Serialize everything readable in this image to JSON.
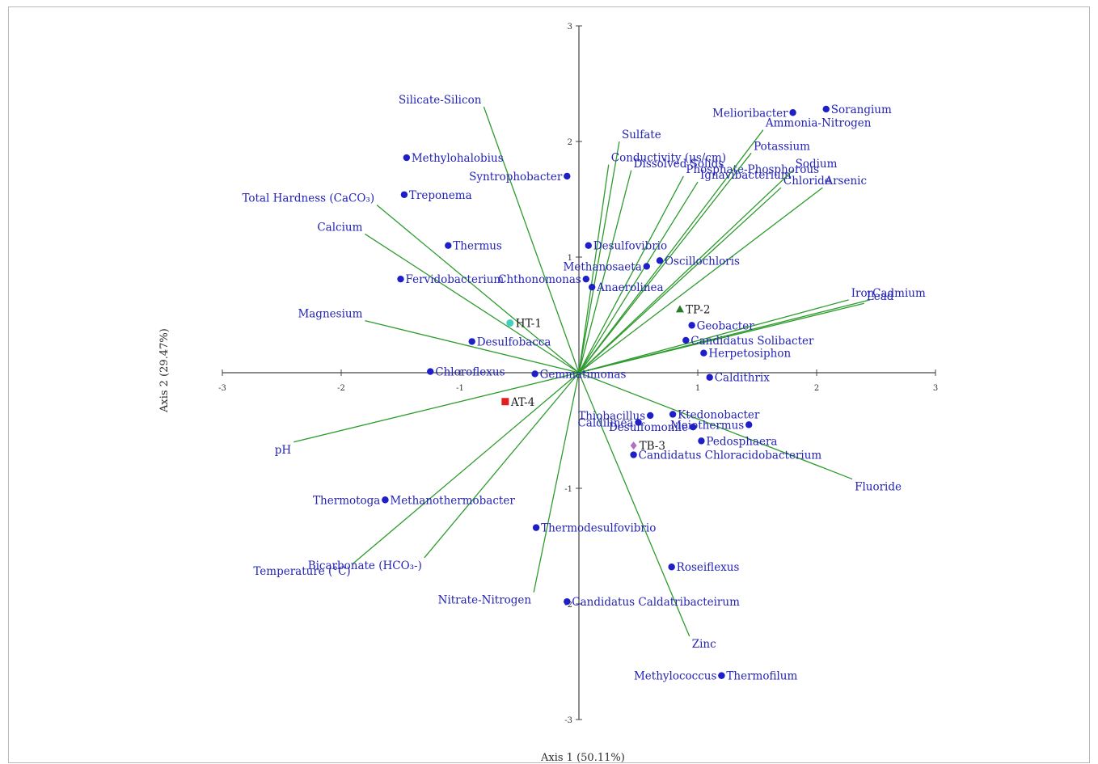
{
  "chart_data": {
    "type": "scatter",
    "subtype": "biplot",
    "xlabel": "Axis 1 (50.11%)",
    "ylabel": "Axis 2 (29.47%)",
    "xlim": [
      -3,
      3
    ],
    "ylim": [
      -3,
      3
    ],
    "xticks": [
      "-3",
      "-2",
      "-1",
      "1",
      "2",
      "3"
    ],
    "yticks": [
      "3",
      "2",
      "1",
      "-1",
      "-2",
      "-3"
    ],
    "grid": false,
    "colors": {
      "vector": "#2e9b2e",
      "taxon": "#1f1fc8",
      "label": "#2323b4",
      "axis": "#444444"
    },
    "vectors": [
      {
        "name": "Silicate-Silicon",
        "x": -0.8,
        "y": 2.3
      },
      {
        "name": "Sulfate",
        "x": 0.34,
        "y": 2.0
      },
      {
        "name": "Conductivity (μs/cm)",
        "x": 0.25,
        "y": 1.8
      },
      {
        "name": "Dissolved Solids",
        "x": 0.44,
        "y": 1.75
      },
      {
        "name": "Phosphate-Phosphorous",
        "x": 0.88,
        "y": 1.7
      },
      {
        "name": "Ammonia-Nitrogen",
        "x": 1.55,
        "y": 2.1
      },
      {
        "name": "Potassium",
        "x": 1.45,
        "y": 1.9
      },
      {
        "name": "Ignavibacterium",
        "x": 1.0,
        "y": 1.65
      },
      {
        "name": "Chloride",
        "x": 1.7,
        "y": 1.6
      },
      {
        "name": "Sodium",
        "x": 1.8,
        "y": 1.75
      },
      {
        "name": "Arsenic",
        "x": 2.05,
        "y": 1.6
      },
      {
        "name": "Total Hardness (CaCO₃)",
        "x": -1.7,
        "y": 1.45
      },
      {
        "name": "Calcium",
        "x": -1.8,
        "y": 1.2
      },
      {
        "name": "Magnesium",
        "x": -1.8,
        "y": 0.45
      },
      {
        "name": "Iron",
        "x": 2.27,
        "y": 0.63
      },
      {
        "name": "Cadmium",
        "x": 2.45,
        "y": 0.63
      },
      {
        "name": "Lead",
        "x": 2.4,
        "y": 0.6
      },
      {
        "name": "pH",
        "x": -2.4,
        "y": -0.6
      },
      {
        "name": "Fluoride",
        "x": 2.3,
        "y": -0.92
      },
      {
        "name": "Temperature (°C)",
        "x": -1.9,
        "y": -1.65
      },
      {
        "name": "Bicarbonate (HCO₃-)",
        "x": -1.3,
        "y": -1.6
      },
      {
        "name": "Nitrate-Nitrogen",
        "x": -0.38,
        "y": -1.9
      },
      {
        "name": "Zinc",
        "x": 0.93,
        "y": -2.28
      }
    ],
    "taxa": [
      {
        "name": "Sorangium",
        "x": 2.08,
        "y": 2.28,
        "label_side": "right"
      },
      {
        "name": "Melioribacter",
        "x": 1.8,
        "y": 2.25,
        "label_side": "left"
      },
      {
        "name": "Methylohalobius",
        "x": -1.45,
        "y": 1.86,
        "label_side": "right"
      },
      {
        "name": "Treponema",
        "x": -1.47,
        "y": 1.54,
        "label_side": "right"
      },
      {
        "name": "Syntrophobacter",
        "x": -0.1,
        "y": 1.7,
        "label_side": "left"
      },
      {
        "name": "Thermus",
        "x": -1.1,
        "y": 1.1,
        "label_side": "right"
      },
      {
        "name": "Desulfovibrio",
        "x": 0.08,
        "y": 1.1,
        "label_side": "right"
      },
      {
        "name": "Methanosaeta",
        "x": 0.57,
        "y": 0.92,
        "label_side": "left"
      },
      {
        "name": "Oscillochloris",
        "x": 0.68,
        "y": 0.97,
        "label_side": "right"
      },
      {
        "name": "Chthonomonas",
        "x": 0.06,
        "y": 0.81,
        "label_side": "left"
      },
      {
        "name": "Anaerolinea",
        "x": 0.11,
        "y": 0.74,
        "label_side": "right"
      },
      {
        "name": "Fervidobacterium",
        "x": -1.5,
        "y": 0.81,
        "label_side": "right"
      },
      {
        "name": "Geobacter",
        "x": 0.95,
        "y": 0.41,
        "label_side": "right"
      },
      {
        "name": "Candidatus Solibacter",
        "x": 0.9,
        "y": 0.28,
        "label_side": "right"
      },
      {
        "name": "Herpetosiphon",
        "x": 1.05,
        "y": 0.17,
        "label_side": "right"
      },
      {
        "name": "Desulfobacca",
        "x": -0.9,
        "y": 0.27,
        "label_side": "right"
      },
      {
        "name": "Chloroflexus",
        "x": -1.25,
        "y": 0.01,
        "label_side": "right"
      },
      {
        "name": "Gemmatimonas",
        "x": -0.37,
        "y": -0.01,
        "label_side": "right"
      },
      {
        "name": "Caldithrix",
        "x": 1.1,
        "y": -0.04,
        "label_side": "right"
      },
      {
        "name": "Ktedonobacter",
        "x": 0.79,
        "y": -0.36,
        "label_side": "right"
      },
      {
        "name": "Thiobacillus",
        "x": 0.6,
        "y": -0.37,
        "label_side": "left"
      },
      {
        "name": "Caldilinea",
        "x": 0.5,
        "y": -0.43,
        "label_side": "left"
      },
      {
        "name": "Meiothermus",
        "x": 1.43,
        "y": -0.45,
        "label_side": "left"
      },
      {
        "name": "Desulfomonile",
        "x": 0.96,
        "y": -0.47,
        "label_side": "left"
      },
      {
        "name": "Pedosphaera",
        "x": 1.03,
        "y": -0.59,
        "label_side": "right"
      },
      {
        "name": "Candidatus Chloracidobacterium",
        "x": 0.46,
        "y": -0.71,
        "label_side": "right"
      },
      {
        "name": "Thermotoga",
        "x": -1.63,
        "y": -1.1,
        "label_side": "left"
      },
      {
        "name": "Methanothermobacter",
        "x": -1.63,
        "y": -1.1,
        "label_side": "right"
      },
      {
        "name": "Thermodesulfovibrio",
        "x": -0.36,
        "y": -1.34,
        "label_side": "right"
      },
      {
        "name": "Roseiflexus",
        "x": 0.78,
        "y": -1.68,
        "label_side": "right"
      },
      {
        "name": "Candidatus Caldatribacteirum",
        "x": -0.1,
        "y": -1.98,
        "label_side": "right"
      },
      {
        "name": "Methylococcus",
        "x": 1.2,
        "y": -2.62,
        "label_side": "left"
      },
      {
        "name": "Thermofilum",
        "x": 1.2,
        "y": -2.62,
        "label_side": "right"
      }
    ],
    "samples": [
      {
        "name": "HT-1",
        "x": -0.58,
        "y": 0.43,
        "marker": "circle",
        "color": "#3fd0c0"
      },
      {
        "name": "TP-2",
        "x": 0.85,
        "y": 0.55,
        "marker": "triangle",
        "color": "#2a7a2a"
      },
      {
        "name": "TB-3",
        "x": 0.46,
        "y": -0.63,
        "marker": "diamond",
        "color": "#b070c8"
      },
      {
        "name": "AT-4",
        "x": -0.62,
        "y": -0.25,
        "marker": "square",
        "color": "#e02020"
      }
    ]
  }
}
